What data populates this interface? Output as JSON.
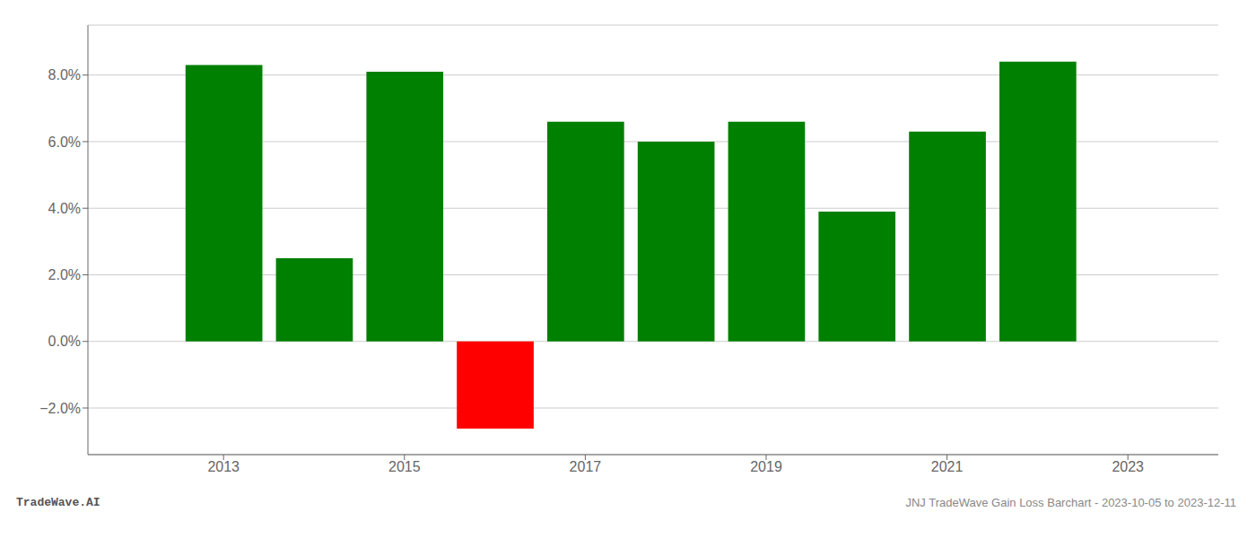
{
  "chart_data": {
    "type": "bar",
    "x": [
      2013,
      2014,
      2015,
      2016,
      2017,
      2018,
      2019,
      2020,
      2021,
      2022
    ],
    "values": [
      0.083,
      0.025,
      0.081,
      -0.0262,
      0.066,
      0.06,
      0.066,
      0.039,
      0.063,
      0.084
    ],
    "colors": [
      "#008000",
      "#008000",
      "#008000",
      "#ff0000",
      "#008000",
      "#008000",
      "#008000",
      "#008000",
      "#008000",
      "#008000"
    ],
    "xlim": [
      2011.5,
      2024.0
    ],
    "ylim": [
      -0.034,
      0.095
    ],
    "xticks": [
      2013,
      2015,
      2017,
      2019,
      2021,
      2023
    ],
    "yticks": [
      {
        "value": -0.02,
        "label": "−2.0%"
      },
      {
        "value": 0.0,
        "label": "0.0%"
      },
      {
        "value": 0.02,
        "label": "2.0%"
      },
      {
        "value": 0.04,
        "label": "4.0%"
      },
      {
        "value": 0.06,
        "label": "6.0%"
      },
      {
        "value": 0.08,
        "label": "8.0%"
      }
    ],
    "grid": true,
    "annotations": [
      "TradeWave.AI",
      "JNJ TradeWave Gain Loss Barchart - 2023-10-05 to 2023-12-11"
    ]
  }
}
